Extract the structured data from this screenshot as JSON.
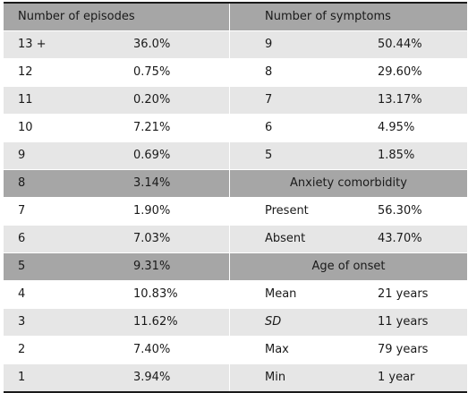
{
  "headers": {
    "episodes": "Number of episodes",
    "symptoms": "Number of symptoms"
  },
  "rows": [
    {
      "ep": "13 +",
      "ep_pct": "36.0%",
      "right_type": "data",
      "label": "9",
      "value": "50.44%"
    },
    {
      "ep": "12",
      "ep_pct": "0.75%",
      "right_type": "data",
      "label": "8",
      "value": "29.60%"
    },
    {
      "ep": "11",
      "ep_pct": "0.20%",
      "right_type": "data",
      "label": "7",
      "value": "13.17%"
    },
    {
      "ep": "10",
      "ep_pct": "7.21%",
      "right_type": "data",
      "label": "6",
      "value": "4.95%"
    },
    {
      "ep": "9",
      "ep_pct": "0.69%",
      "right_type": "data",
      "label": "5",
      "value": "1.85%"
    },
    {
      "ep": "8",
      "ep_pct": "3.14%",
      "right_type": "header",
      "label": "Anxiety comorbidity"
    },
    {
      "ep": "7",
      "ep_pct": "1.90%",
      "right_type": "data",
      "label": "Present",
      "value": "56.30%"
    },
    {
      "ep": "6",
      "ep_pct": "7.03%",
      "right_type": "data",
      "label": "Absent",
      "value": "43.70%"
    },
    {
      "ep": "5",
      "ep_pct": "9.31%",
      "right_type": "header",
      "label": "Age of onset"
    },
    {
      "ep": "4",
      "ep_pct": "10.83%",
      "right_type": "data",
      "label": "Mean",
      "value": "21 years"
    },
    {
      "ep": "3",
      "ep_pct": "11.62%",
      "right_type": "data",
      "label": "SD",
      "value": "11 years",
      "italic": true
    },
    {
      "ep": "2",
      "ep_pct": "7.40%",
      "right_type": "data",
      "label": "Max",
      "value": "79 years"
    },
    {
      "ep": "1",
      "ep_pct": "3.94%",
      "right_type": "data",
      "label": "Min",
      "value": "1 year"
    }
  ]
}
